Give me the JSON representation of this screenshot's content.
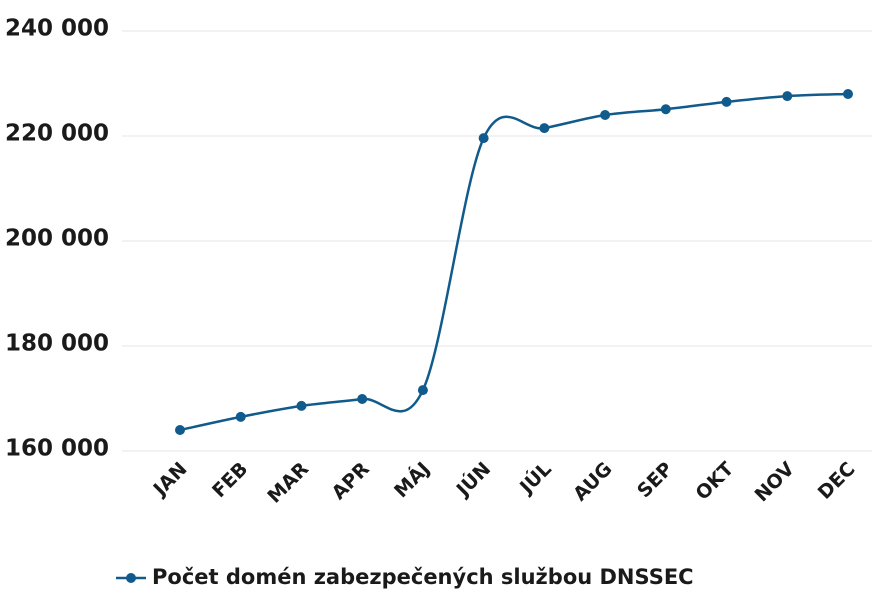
{
  "chart_data": {
    "type": "line",
    "categories": [
      "JAN",
      "FEB",
      "MAR",
      "APR",
      "MÁJ",
      "JÚN",
      "JÚL",
      "AUG",
      "SEP",
      "OKT",
      "NOV",
      "DEC"
    ],
    "series": [
      {
        "name": "Počet domén zabezpečených službou DNSSEC",
        "color": "#115b8c",
        "values": [
          164000,
          166500,
          168600,
          169900,
          171600,
          219600,
          221500,
          224000,
          225100,
          226500,
          227600,
          228000
        ]
      }
    ],
    "ylim": [
      160000,
      240000
    ],
    "yticks": [
      {
        "value": 160000,
        "label": "160 000"
      },
      {
        "value": 180000,
        "label": "180 000"
      },
      {
        "value": 200000,
        "label": "200 000"
      },
      {
        "value": 220000,
        "label": "220 000"
      },
      {
        "value": 240000,
        "label": "240 000"
      }
    ],
    "grid": true,
    "legend": "bottom"
  }
}
